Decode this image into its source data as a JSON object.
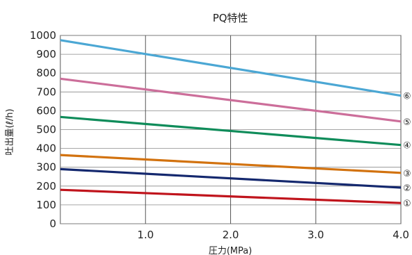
{
  "chart_data": {
    "type": "line",
    "title": "PQ特性",
    "xlabel": "圧力(MPa)",
    "ylabel": "吐出量(ℓ/h)",
    "xlim": [
      0,
      4.0
    ],
    "ylim": [
      0,
      1000
    ],
    "x_ticks": [
      1.0,
      2.0,
      3.0,
      4.0
    ],
    "x_tick_labels": [
      "1.0",
      "2.0",
      "3.0",
      "4.0"
    ],
    "y_ticks": [
      0,
      100,
      200,
      300,
      400,
      500,
      600,
      700,
      800,
      900,
      1000
    ],
    "y_tick_labels": [
      "0",
      "100",
      "200",
      "300",
      "400",
      "500",
      "600",
      "700",
      "800",
      "900",
      "1000"
    ],
    "grid": true,
    "series": [
      {
        "name": "①",
        "color": "#c0141c",
        "x": [
          0,
          4.0
        ],
        "y": [
          180,
          110
        ]
      },
      {
        "name": "②",
        "color": "#14286e",
        "x": [
          0,
          4.0
        ],
        "y": [
          290,
          192
        ]
      },
      {
        "name": "③",
        "color": "#d2720f",
        "x": [
          0,
          4.0
        ],
        "y": [
          365,
          270
        ]
      },
      {
        "name": "④",
        "color": "#0f8c5a",
        "x": [
          0,
          4.0
        ],
        "y": [
          567,
          418
        ]
      },
      {
        "name": "⑤",
        "color": "#cc6e9a",
        "x": [
          0,
          4.0
        ],
        "y": [
          770,
          543
        ]
      },
      {
        "name": "⑥",
        "color": "#4ba7d4",
        "x": [
          0,
          4.0
        ],
        "y": [
          975,
          680
        ]
      }
    ]
  }
}
